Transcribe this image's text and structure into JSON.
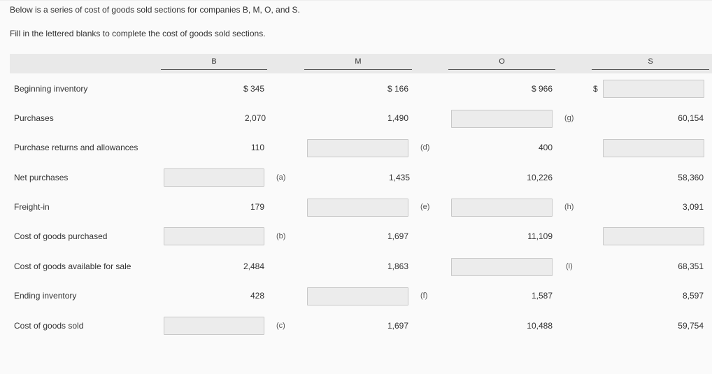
{
  "instructions": {
    "line1": "Below is a series of cost of goods sold sections for companies B, M, O, and S.",
    "line2": "Fill in the lettered blanks to complete the cost of goods sold sections."
  },
  "columns": [
    "B",
    "M",
    "O",
    "S"
  ],
  "rows": [
    {
      "label": "Beginning inventory"
    },
    {
      "label": "Purchases"
    },
    {
      "label": "Purchase returns and allowances"
    },
    {
      "label": "Net purchases"
    },
    {
      "label": "Freight-in"
    },
    {
      "label": "Cost of goods purchased"
    },
    {
      "label": "Cost of goods available for sale"
    },
    {
      "label": "Ending inventory"
    },
    {
      "label": "Cost of goods sold"
    }
  ],
  "cells": {
    "B": {
      "beginning": "$ 345",
      "purchases": "2,070",
      "returns": "110",
      "net_letter": "(a)",
      "freight": "179",
      "purchased_letter": "(b)",
      "available": "2,484",
      "ending": "428",
      "cogs_letter": "(c)"
    },
    "M": {
      "beginning": "$ 166",
      "purchases": "1,490",
      "returns_letter": "(d)",
      "net": "1,435",
      "freight_letter": "(e)",
      "purchased": "1,697",
      "available": "1,863",
      "ending_letter": "(f)",
      "cogs": "1,697"
    },
    "O": {
      "beginning": "$ 966",
      "purchases_letter": "(g)",
      "returns": "400",
      "net": "10,226",
      "freight_letter": "(h)",
      "purchased": "11,109",
      "available_letter": "(i)",
      "ending": "1,587",
      "cogs": "10,488"
    },
    "S": {
      "dollar": "$",
      "purchases": "60,154",
      "net": "58,360",
      "freight": "3,091",
      "available": "68,351",
      "ending": "8,597",
      "cogs": "59,754"
    }
  }
}
